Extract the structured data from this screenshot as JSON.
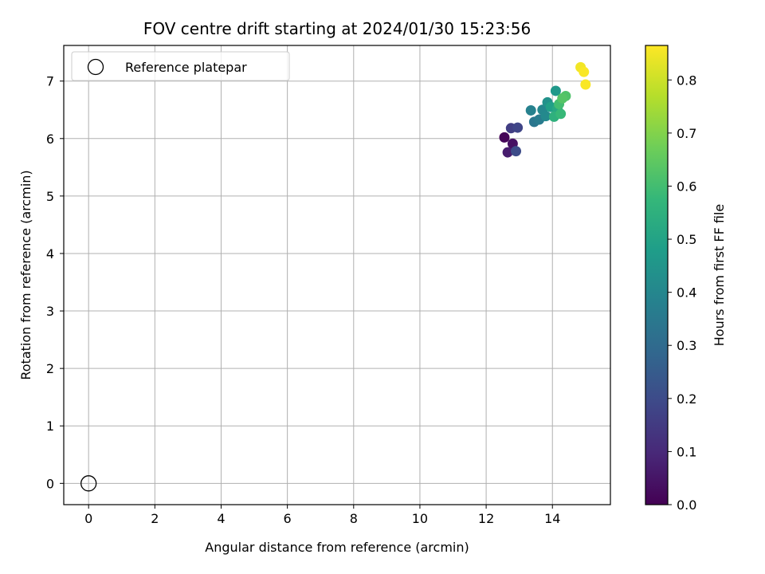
{
  "chart_data": {
    "type": "scatter",
    "title": "FOV centre drift starting at 2024/01/30 15:23:56",
    "xlabel": "Angular distance from reference (arcmin)",
    "ylabel": "Rotation from reference (arcmin)",
    "xlim": [
      -0.75,
      15.75
    ],
    "ylim": [
      -0.37,
      7.62
    ],
    "xticks": [
      0,
      2,
      4,
      6,
      8,
      10,
      12,
      14
    ],
    "yticks": [
      0,
      1,
      2,
      3,
      4,
      5,
      6,
      7
    ],
    "grid": true,
    "legend": {
      "placement": "upper-left",
      "entries": [
        "Reference platepar"
      ]
    },
    "reference": {
      "label": "Reference platepar",
      "x": 0,
      "y": 0
    },
    "colorbar": {
      "label": "Hours from first FF file",
      "min": 0.0,
      "max": 0.865,
      "ticks": [
        0.0,
        0.1,
        0.2,
        0.3,
        0.4,
        0.5,
        0.6,
        0.7,
        0.8
      ],
      "colormap": "viridis",
      "stops": [
        "#440154",
        "#482878",
        "#3e4989",
        "#31688e",
        "#26828e",
        "#1f9e89",
        "#35b779",
        "#6ece58",
        "#b5de2b",
        "#fde725"
      ]
    },
    "points": [
      {
        "x": 12.55,
        "y": 6.02,
        "c": 0.01
      },
      {
        "x": 12.8,
        "y": 5.91,
        "c": 0.04
      },
      {
        "x": 12.65,
        "y": 5.76,
        "c": 0.07
      },
      {
        "x": 12.75,
        "y": 6.18,
        "c": 0.16
      },
      {
        "x": 12.95,
        "y": 6.19,
        "c": 0.18
      },
      {
        "x": 12.9,
        "y": 5.78,
        "c": 0.2
      },
      {
        "x": 13.45,
        "y": 6.29,
        "c": 0.34
      },
      {
        "x": 13.6,
        "y": 6.33,
        "c": 0.36
      },
      {
        "x": 13.35,
        "y": 6.49,
        "c": 0.38
      },
      {
        "x": 13.7,
        "y": 6.5,
        "c": 0.4
      },
      {
        "x": 13.8,
        "y": 6.39,
        "c": 0.41
      },
      {
        "x": 13.85,
        "y": 6.63,
        "c": 0.44
      },
      {
        "x": 14.1,
        "y": 6.83,
        "c": 0.46
      },
      {
        "x": 13.95,
        "y": 6.55,
        "c": 0.49
      },
      {
        "x": 14.15,
        "y": 6.52,
        "c": 0.52
      },
      {
        "x": 14.05,
        "y": 6.38,
        "c": 0.55
      },
      {
        "x": 14.25,
        "y": 6.43,
        "c": 0.58
      },
      {
        "x": 14.2,
        "y": 6.6,
        "c": 0.6
      },
      {
        "x": 14.4,
        "y": 6.74,
        "c": 0.62
      },
      {
        "x": 14.3,
        "y": 6.7,
        "c": 0.63
      },
      {
        "x": 14.85,
        "y": 7.24,
        "c": 0.85
      },
      {
        "x": 14.95,
        "y": 7.16,
        "c": 0.86
      },
      {
        "x": 15.0,
        "y": 6.94,
        "c": 0.86
      }
    ]
  }
}
